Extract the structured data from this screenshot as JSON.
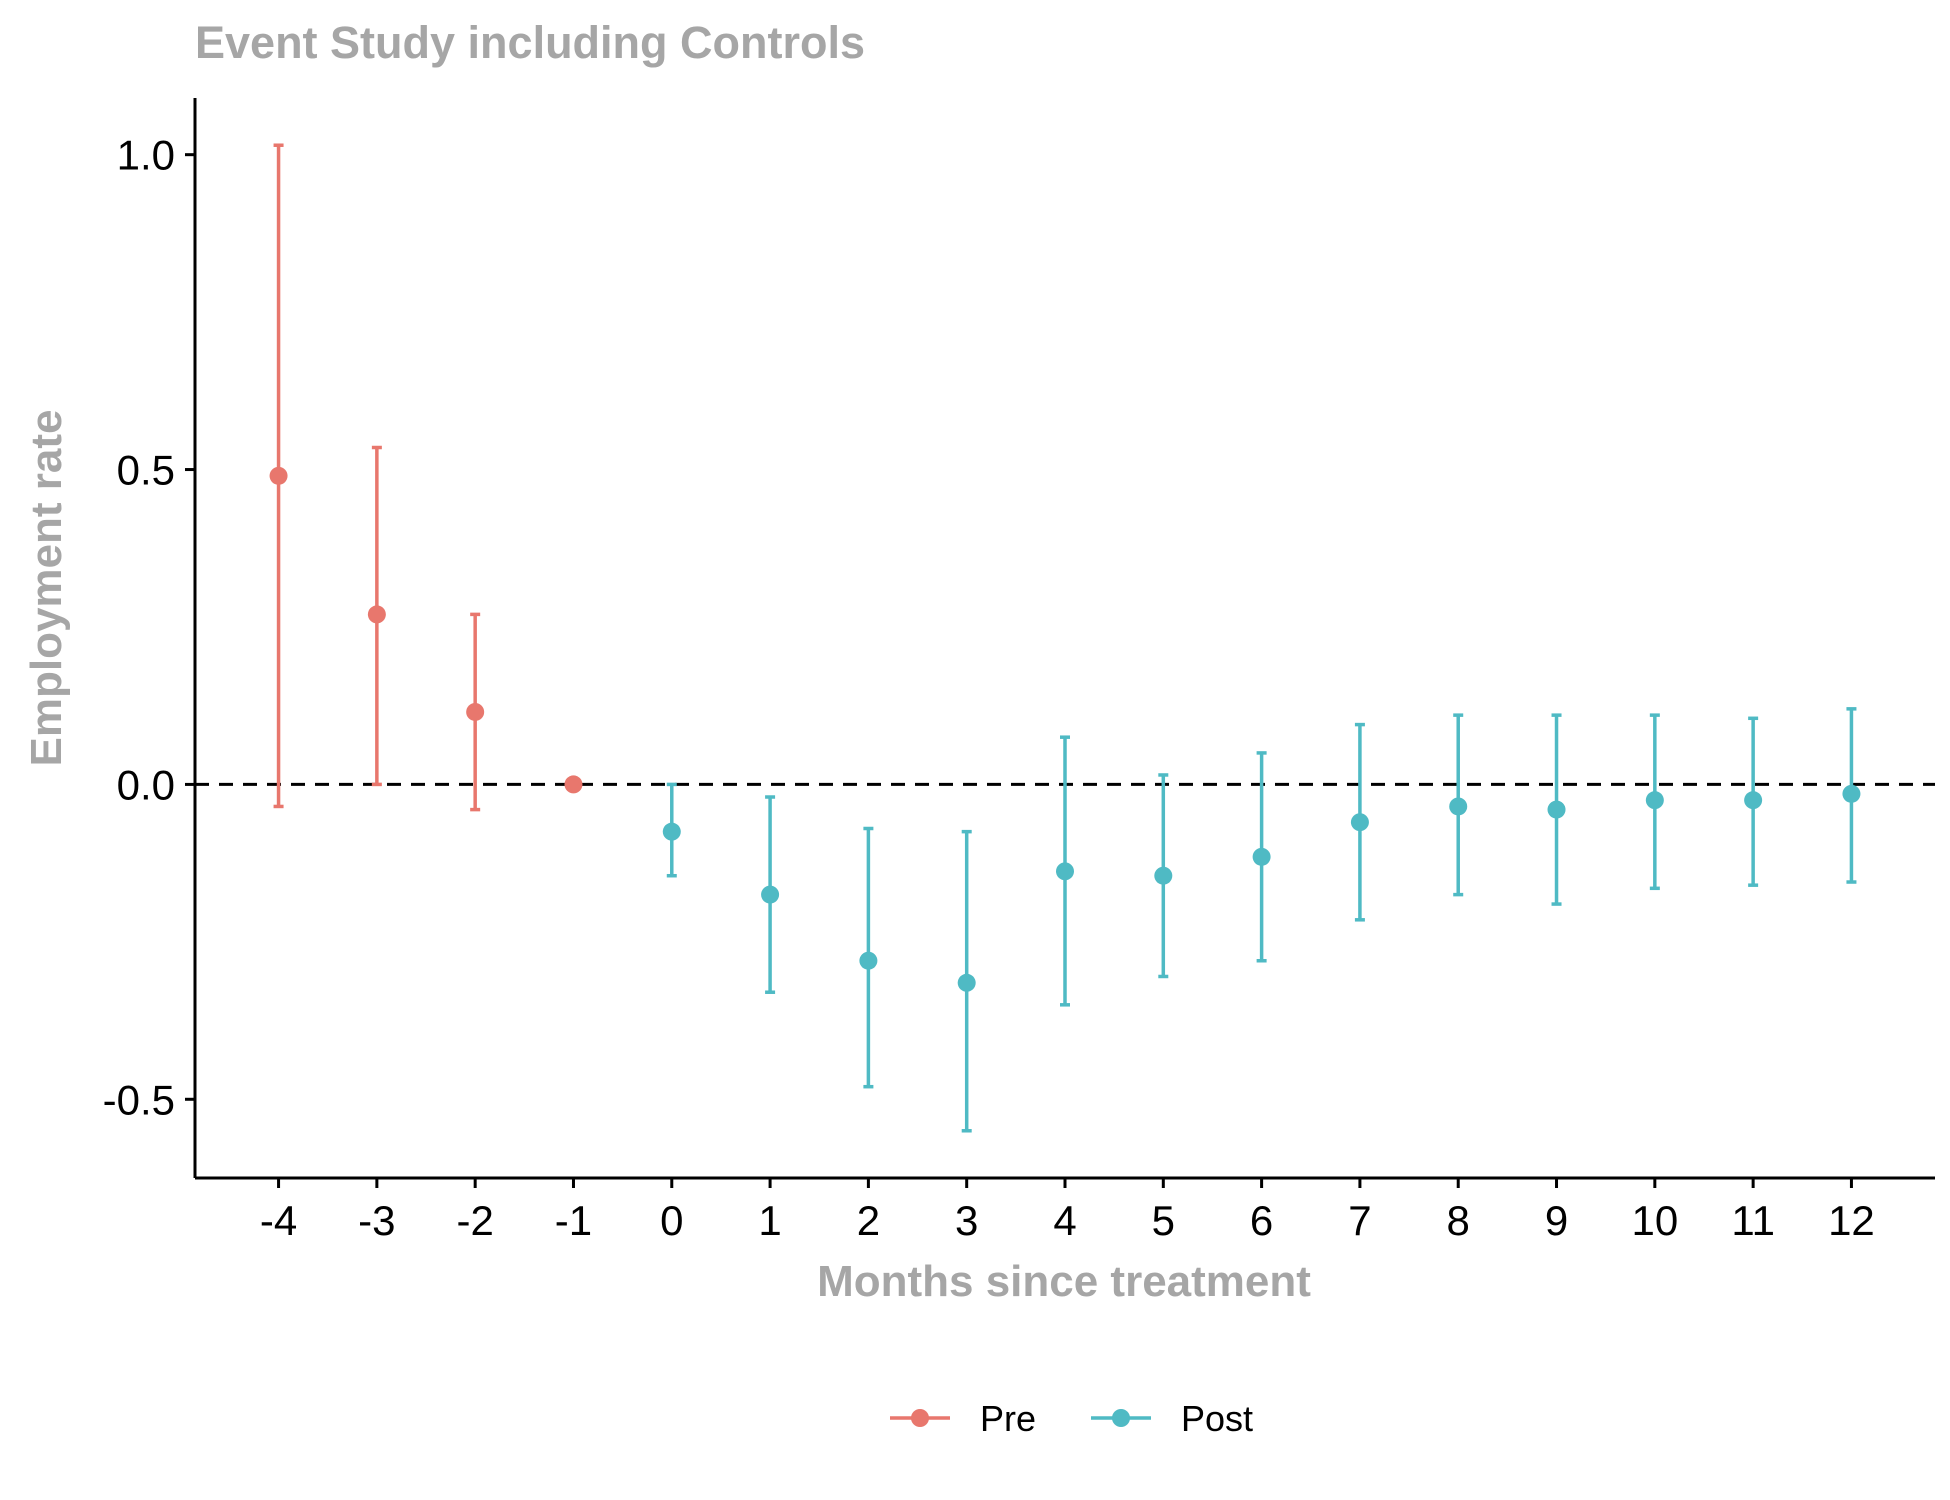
{
  "chart_data": {
    "type": "scatter",
    "title": "Event Study including Controls",
    "xlabel": "Months since treatment",
    "ylabel": "Employment rate",
    "x_ticks": [
      "-4",
      "-3",
      "-2",
      "-1",
      "0",
      "1",
      "2",
      "3",
      "4",
      "5",
      "6",
      "7",
      "8",
      "9",
      "10",
      "11",
      "12"
    ],
    "y_ticks": [
      "1.0",
      "0.5",
      "0.0",
      "-0.5"
    ],
    "xlim": [
      -4.85,
      12.85
    ],
    "ylim": [
      -0.625,
      1.09
    ],
    "reference_line": {
      "y": 0,
      "style": "dashed",
      "color": "#000000"
    },
    "grid": false,
    "legend_position": "bottom",
    "series": [
      {
        "name": "Pre",
        "color": "#E8776D",
        "points": [
          {
            "x": -4,
            "y": 0.49,
            "ymin": -0.035,
            "ymax": 1.015
          },
          {
            "x": -3,
            "y": 0.27,
            "ymin": 0.0,
            "ymax": 0.535
          },
          {
            "x": -2,
            "y": 0.115,
            "ymin": -0.04,
            "ymax": 0.27
          },
          {
            "x": -1,
            "y": 0.0,
            "ymin": null,
            "ymax": null
          }
        ]
      },
      {
        "name": "Post",
        "color": "#4FBAC4",
        "points": [
          {
            "x": 0,
            "y": -0.075,
            "ymin": -0.145,
            "ymax": 0.0
          },
          {
            "x": 1,
            "y": -0.175,
            "ymin": -0.33,
            "ymax": -0.02
          },
          {
            "x": 2,
            "y": -0.28,
            "ymin": -0.48,
            "ymax": -0.07
          },
          {
            "x": 3,
            "y": -0.315,
            "ymin": -0.55,
            "ymax": -0.075
          },
          {
            "x": 4,
            "y": -0.138,
            "ymin": -0.35,
            "ymax": 0.075
          },
          {
            "x": 5,
            "y": -0.145,
            "ymin": -0.305,
            "ymax": 0.015
          },
          {
            "x": 6,
            "y": -0.115,
            "ymin": -0.28,
            "ymax": 0.05
          },
          {
            "x": 7,
            "y": -0.06,
            "ymin": -0.215,
            "ymax": 0.095
          },
          {
            "x": 8,
            "y": -0.035,
            "ymin": -0.175,
            "ymax": 0.11
          },
          {
            "x": 9,
            "y": -0.04,
            "ymin": -0.19,
            "ymax": 0.11
          },
          {
            "x": 10,
            "y": -0.025,
            "ymin": -0.165,
            "ymax": 0.11
          },
          {
            "x": 11,
            "y": -0.025,
            "ymin": -0.16,
            "ymax": 0.105
          },
          {
            "x": 12,
            "y": -0.015,
            "ymin": -0.155,
            "ymax": 0.12
          }
        ]
      }
    ]
  }
}
